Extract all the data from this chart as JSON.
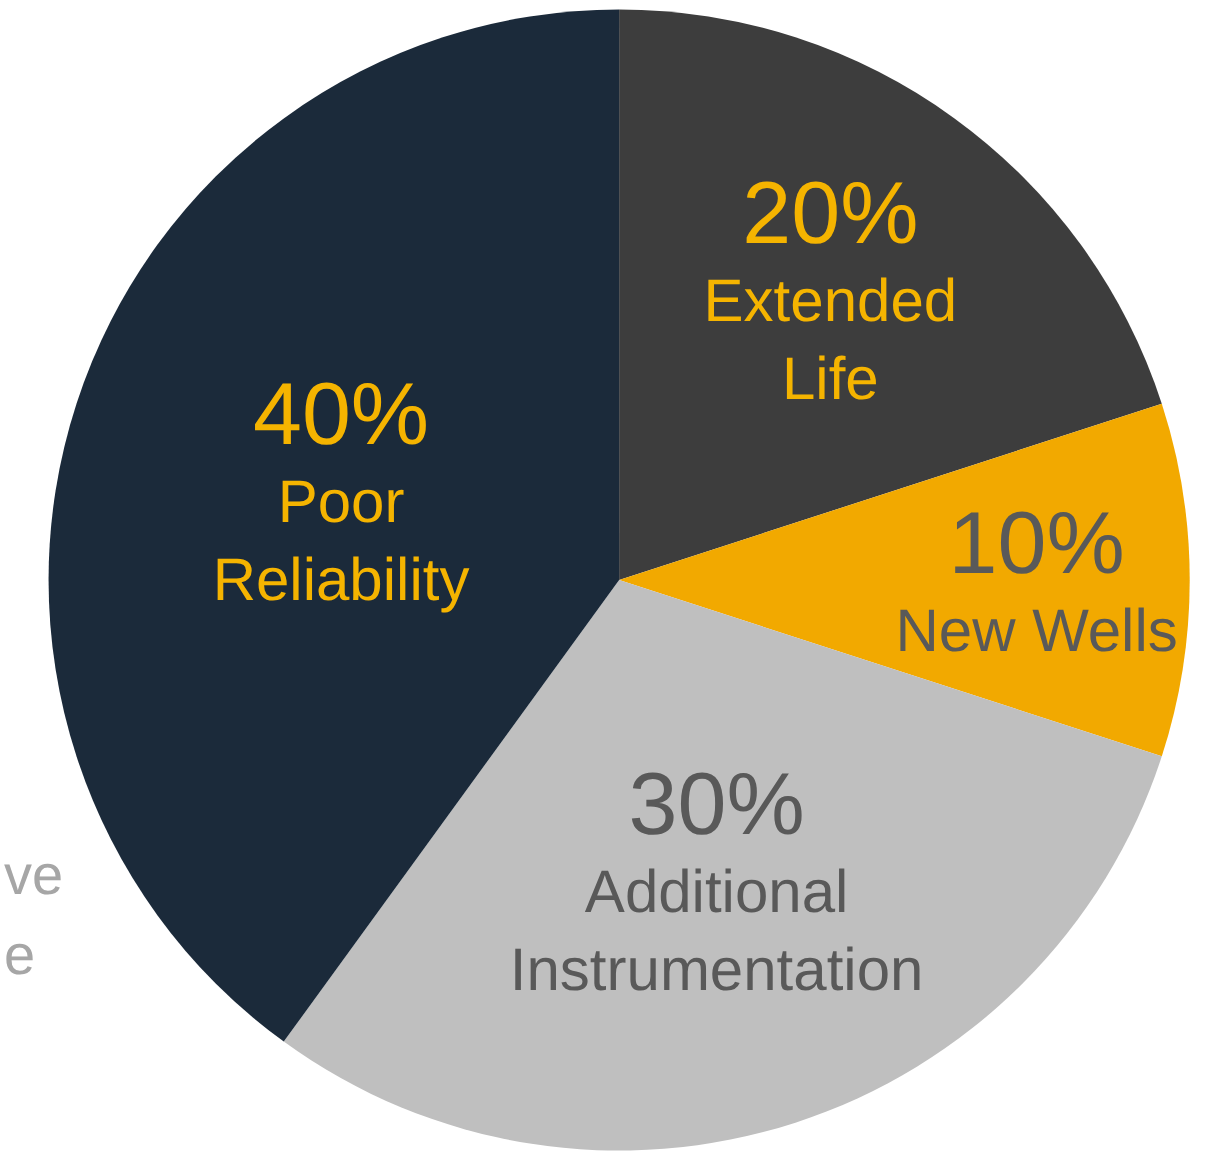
{
  "chart_data": {
    "type": "pie",
    "categories": [
      "Extended\nLife",
      "New Wells",
      "Additional\nInstrumentation",
      "Poor\nReliability"
    ],
    "values": [
      20,
      10,
      30,
      40
    ],
    "value_labels": [
      "20%",
      "10%",
      "30%",
      "40%"
    ],
    "colors": [
      "#3d3d3d",
      "#f2a900",
      "#bfbfbf",
      "#1b2a3a"
    ],
    "annotations": [
      "ve",
      "e"
    ],
    "legend": false
  }
}
